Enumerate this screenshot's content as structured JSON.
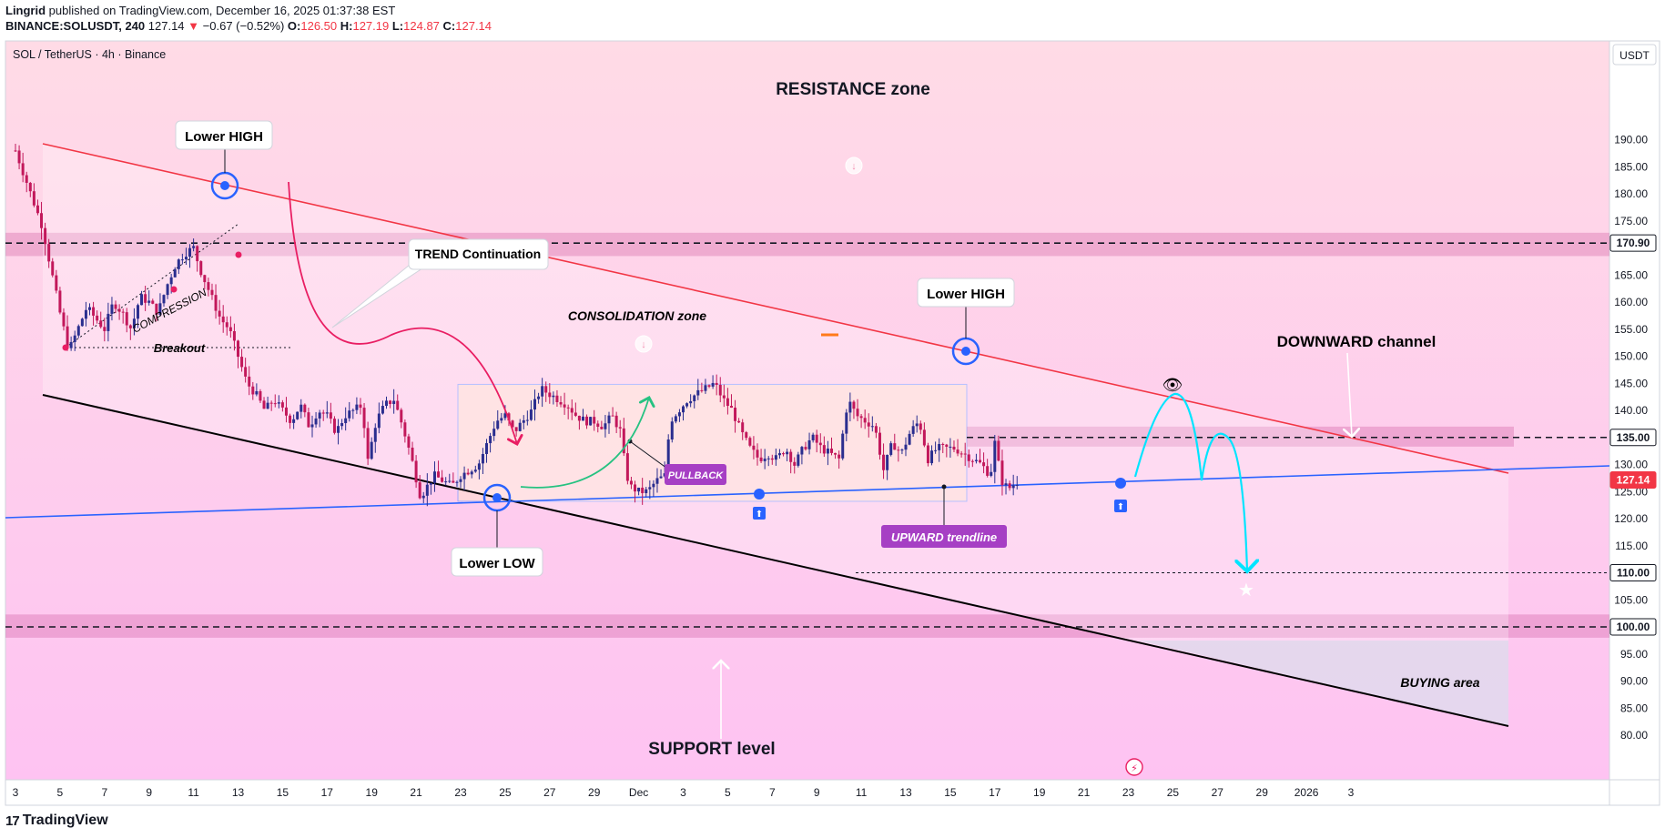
{
  "header": {
    "author": "Lingrid",
    "published": "published on TradingView.com, December 16, 2025 01:37:38 EST",
    "symbol": "BINANCE:SOLUSDT, 240",
    "last": "127.14",
    "arrow": "▼",
    "change": "−0.67 (−0.52%)",
    "o_label": "O:",
    "o": "126.50",
    "h_label": "H:",
    "h": "127.19",
    "l_label": "L:",
    "l": "124.87",
    "c_label": "C:",
    "c": "127.14"
  },
  "chart_title": "SOL / TetherUS · 4h · Binance",
  "currency_button": "USDT",
  "footer_brand": "TradingView",
  "footer_logo": "17",
  "colors": {
    "up": "#2a2e8f",
    "down": "#c2185b",
    "resistance_line": "#f23645",
    "support_line": "#000000",
    "trendline": "#2962ff",
    "price_tag": "#f23645",
    "label_purple": "#a63fc4",
    "projection": "#00e5ff"
  },
  "chart_data": {
    "type": "candlestick",
    "timeframe": "4h",
    "y_axis": {
      "min": 78,
      "max": 192,
      "ticks": [
        80,
        85,
        90,
        95,
        100,
        105,
        110,
        115,
        120,
        125,
        130,
        135,
        140,
        145,
        150,
        155,
        160,
        165,
        170,
        175,
        180,
        185,
        190
      ]
    },
    "x_axis": {
      "start_day": 3,
      "end_day": 65,
      "tick_days": [
        3,
        5,
        7,
        9,
        11,
        13,
        15,
        17,
        19,
        21,
        23,
        25,
        27,
        29,
        31,
        33,
        35,
        37,
        39,
        41,
        43,
        45,
        47,
        49,
        51,
        53,
        55,
        57,
        59,
        61,
        63,
        65
      ],
      "tick_labels": [
        "3",
        "5",
        "7",
        "9",
        "11",
        "13",
        "15",
        "17",
        "19",
        "21",
        "23",
        "25",
        "27",
        "29",
        "Dec",
        "3",
        "5",
        "7",
        "9",
        "11",
        "13",
        "15",
        "17",
        "19",
        "21",
        "23",
        "25",
        "27",
        "29",
        "2026",
        "3",
        ""
      ]
    },
    "price_labels": [
      {
        "price": 170.9,
        "text": "170.90"
      },
      {
        "price": 135.0,
        "text": "135.00"
      },
      {
        "price": 127.14,
        "text": "127.14",
        "current": true
      },
      {
        "price": 110.0,
        "text": "110.00"
      },
      {
        "price": 100.0,
        "text": "100.00"
      }
    ],
    "anchors": [
      [
        3.0,
        188
      ],
      [
        3.6,
        181
      ],
      [
        4.2,
        174
      ],
      [
        4.6,
        166
      ],
      [
        5.0,
        158
      ],
      [
        5.4,
        151
      ],
      [
        5.8,
        155
      ],
      [
        6.2,
        159
      ],
      [
        6.6,
        157
      ],
      [
        7.0,
        155
      ],
      [
        7.4,
        160
      ],
      [
        7.8,
        158
      ],
      [
        8.2,
        155
      ],
      [
        8.6,
        161
      ],
      [
        9.0,
        160
      ],
      [
        9.4,
        158
      ],
      [
        9.8,
        163
      ],
      [
        10.2,
        167
      ],
      [
        10.6,
        169
      ],
      [
        11.0,
        170
      ],
      [
        11.3,
        166
      ],
      [
        11.6,
        163
      ],
      [
        11.9,
        160
      ],
      [
        12.2,
        157
      ],
      [
        12.6,
        155
      ],
      [
        13.0,
        150
      ],
      [
        13.4,
        145
      ],
      [
        13.8,
        143
      ],
      [
        14.2,
        140
      ],
      [
        14.6,
        142
      ],
      [
        15.0,
        140
      ],
      [
        15.4,
        138
      ],
      [
        15.8,
        141
      ],
      [
        16.2,
        137
      ],
      [
        16.6,
        140
      ],
      [
        17.0,
        139
      ],
      [
        17.4,
        136
      ],
      [
        17.8,
        139
      ],
      [
        18.2,
        140
      ],
      [
        18.6,
        141
      ],
      [
        18.8,
        130
      ],
      [
        19.2,
        138
      ],
      [
        19.6,
        141
      ],
      [
        20.0,
        142
      ],
      [
        20.4,
        137
      ],
      [
        20.8,
        131
      ],
      [
        21.2,
        124
      ],
      [
        21.5,
        126
      ],
      [
        21.8,
        128
      ],
      [
        22.2,
        127
      ],
      [
        22.6,
        126
      ],
      [
        23.0,
        128
      ],
      [
        23.4,
        129
      ],
      [
        23.8,
        130
      ],
      [
        24.2,
        134
      ],
      [
        24.6,
        138
      ],
      [
        25.0,
        139
      ],
      [
        25.4,
        136
      ],
      [
        25.8,
        138
      ],
      [
        26.2,
        140
      ],
      [
        26.6,
        144
      ],
      [
        27.0,
        143
      ],
      [
        27.4,
        142
      ],
      [
        27.8,
        141
      ],
      [
        28.2,
        139
      ],
      [
        28.6,
        138
      ],
      [
        29.0,
        138
      ],
      [
        29.4,
        137
      ],
      [
        29.8,
        139
      ],
      [
        30.2,
        136
      ],
      [
        30.4,
        129
      ],
      [
        30.6,
        126
      ],
      [
        31.0,
        125
      ],
      [
        31.4,
        125
      ],
      [
        31.8,
        127
      ],
      [
        32.2,
        128
      ],
      [
        32.4,
        138
      ],
      [
        32.8,
        140
      ],
      [
        33.2,
        142
      ],
      [
        33.6,
        143
      ],
      [
        34.0,
        144
      ],
      [
        34.4,
        145
      ],
      [
        34.8,
        142
      ],
      [
        35.2,
        140
      ],
      [
        35.6,
        136
      ],
      [
        36.0,
        133
      ],
      [
        36.4,
        131
      ],
      [
        36.8,
        132
      ],
      [
        37.2,
        131
      ],
      [
        37.6,
        133
      ],
      [
        38.0,
        130
      ],
      [
        38.4,
        133
      ],
      [
        38.8,
        135
      ],
      [
        39.2,
        133
      ],
      [
        39.6,
        132
      ],
      [
        40.0,
        131
      ],
      [
        40.4,
        142
      ],
      [
        40.8,
        139
      ],
      [
        41.2,
        138
      ],
      [
        41.6,
        137
      ],
      [
        42.0,
        129
      ],
      [
        42.4,
        134
      ],
      [
        42.8,
        132
      ],
      [
        43.2,
        136
      ],
      [
        43.6,
        138
      ],
      [
        44.0,
        131
      ],
      [
        44.4,
        133
      ],
      [
        44.8,
        133
      ],
      [
        45.2,
        133
      ],
      [
        45.6,
        132
      ],
      [
        46.0,
        131
      ],
      [
        46.4,
        130
      ],
      [
        46.8,
        128
      ],
      [
        47.0,
        134
      ],
      [
        47.3,
        127
      ],
      [
        47.6,
        125.5
      ],
      [
        47.9,
        126.5
      ],
      [
        48.1,
        127.1
      ]
    ],
    "annotations": [
      {
        "text": "RESISTANCE zone",
        "kind": "title"
      },
      {
        "text": "SUPPORT level",
        "kind": "title"
      },
      {
        "text": "Lower HIGH",
        "kind": "callout"
      },
      {
        "text": "Lower HIGH",
        "kind": "callout"
      },
      {
        "text": "Lower LOW",
        "kind": "callout"
      },
      {
        "text": "TREND Continuation",
        "kind": "callout"
      },
      {
        "text": "CONSOLIDATION zone",
        "kind": "italic"
      },
      {
        "text": "COMPRESSION",
        "kind": "italic"
      },
      {
        "text": "Breakout",
        "kind": "italic"
      },
      {
        "text": "PULLBACK",
        "kind": "badge"
      },
      {
        "text": "UPWARD trendline",
        "kind": "badge"
      },
      {
        "text": "DOWNWARD channel",
        "kind": "plain"
      },
      {
        "text": "BUYING area",
        "kind": "italic"
      }
    ],
    "zones": [
      {
        "name": "resistance",
        "from_price": 168.5,
        "to_price": 172.8
      },
      {
        "name": "support",
        "from_price": 98.0,
        "to_price": 102.3
      },
      {
        "name": "consolidation",
        "from_price": 123.2,
        "to_price": 144.8
      },
      {
        "name": "mid-resistance",
        "from_price": 133.3,
        "to_price": 137.0
      }
    ]
  }
}
